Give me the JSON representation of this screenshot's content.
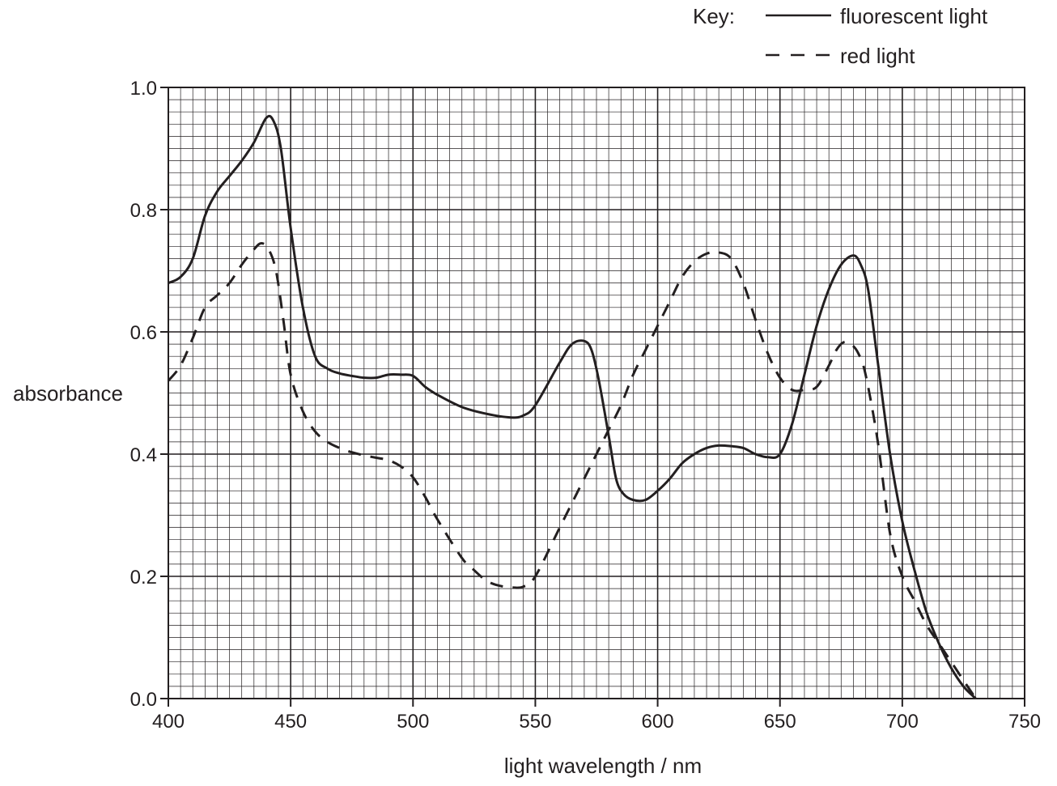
{
  "legend": {
    "key_label": "Key:",
    "items": [
      {
        "label": "fluorescent light",
        "style": "solid"
      },
      {
        "label": "red light",
        "style": "dashed"
      }
    ]
  },
  "chart_data": {
    "type": "line",
    "title": "",
    "xlabel": "light wavelength / nm",
    "ylabel": "absorbance",
    "xlim": [
      400,
      750
    ],
    "ylim": [
      0.0,
      1.0
    ],
    "x_ticks": [
      400,
      450,
      500,
      550,
      600,
      650,
      700,
      750
    ],
    "x_tick_labels": [
      "400",
      "450",
      "500",
      "550",
      "600",
      "650",
      "700",
      "750"
    ],
    "y_ticks": [
      0.0,
      0.2,
      0.4,
      0.6,
      0.8,
      1.0
    ],
    "y_tick_labels": [
      "0.0",
      "0.2",
      "0.4",
      "0.6",
      "0.8",
      "1.0"
    ],
    "grid": {
      "major_x": 50,
      "minor_x": 5,
      "major_y": 0.2,
      "minor_y": 0.02
    },
    "legend_position": "top-right",
    "line_color": "#231f20",
    "series": [
      {
        "name": "fluorescent light",
        "style": "solid",
        "x": [
          400,
          405,
          410,
          415,
          420,
          425,
          430,
          435,
          440,
          443,
          446,
          450,
          455,
          460,
          465,
          470,
          475,
          480,
          485,
          490,
          495,
          500,
          505,
          510,
          520,
          530,
          540,
          545,
          550,
          560,
          565,
          570,
          573,
          576,
          580,
          583,
          586,
          590,
          595,
          600,
          605,
          610,
          615,
          620,
          625,
          630,
          635,
          640,
          645,
          650,
          655,
          660,
          665,
          670,
          675,
          680,
          683,
          686,
          690,
          695,
          700,
          705,
          710,
          715,
          720,
          725,
          730
        ],
        "y": [
          0.68,
          0.69,
          0.72,
          0.79,
          0.83,
          0.855,
          0.88,
          0.91,
          0.95,
          0.945,
          0.9,
          0.77,
          0.64,
          0.56,
          0.54,
          0.532,
          0.528,
          0.525,
          0.525,
          0.53,
          0.53,
          0.528,
          0.51,
          0.497,
          0.477,
          0.466,
          0.46,
          0.463,
          0.48,
          0.55,
          0.58,
          0.585,
          0.57,
          0.52,
          0.43,
          0.36,
          0.335,
          0.325,
          0.325,
          0.34,
          0.36,
          0.385,
          0.4,
          0.41,
          0.414,
          0.413,
          0.41,
          0.4,
          0.395,
          0.4,
          0.45,
          0.53,
          0.61,
          0.67,
          0.71,
          0.725,
          0.71,
          0.67,
          0.55,
          0.4,
          0.29,
          0.21,
          0.14,
          0.09,
          0.05,
          0.02,
          0.0
        ]
      },
      {
        "name": "red light",
        "style": "dashed",
        "x": [
          400,
          405,
          410,
          415,
          420,
          425,
          430,
          435,
          438,
          441,
          444,
          447,
          450,
          455,
          460,
          465,
          470,
          475,
          480,
          485,
          490,
          495,
          500,
          505,
          510,
          520,
          525,
          530,
          535,
          540,
          545,
          550,
          560,
          570,
          575,
          580,
          585,
          590,
          595,
          600,
          605,
          610,
          615,
          620,
          625,
          630,
          635,
          640,
          645,
          650,
          655,
          660,
          665,
          670,
          673,
          676,
          679,
          682,
          685,
          690,
          695,
          700,
          705,
          710,
          715,
          720,
          725,
          730
        ],
        "y": [
          0.52,
          0.545,
          0.59,
          0.64,
          0.66,
          0.68,
          0.71,
          0.735,
          0.745,
          0.735,
          0.7,
          0.62,
          0.53,
          0.47,
          0.437,
          0.42,
          0.41,
          0.403,
          0.398,
          0.394,
          0.39,
          0.38,
          0.362,
          0.33,
          0.293,
          0.23,
          0.21,
          0.193,
          0.185,
          0.182,
          0.183,
          0.2,
          0.28,
          0.36,
          0.4,
          0.44,
          0.48,
          0.53,
          0.57,
          0.61,
          0.65,
          0.69,
          0.715,
          0.728,
          0.73,
          0.72,
          0.68,
          0.62,
          0.565,
          0.525,
          0.505,
          0.505,
          0.51,
          0.545,
          0.57,
          0.583,
          0.58,
          0.565,
          0.53,
          0.42,
          0.27,
          0.2,
          0.16,
          0.12,
          0.09,
          0.06,
          0.03,
          0.0
        ]
      }
    ]
  }
}
